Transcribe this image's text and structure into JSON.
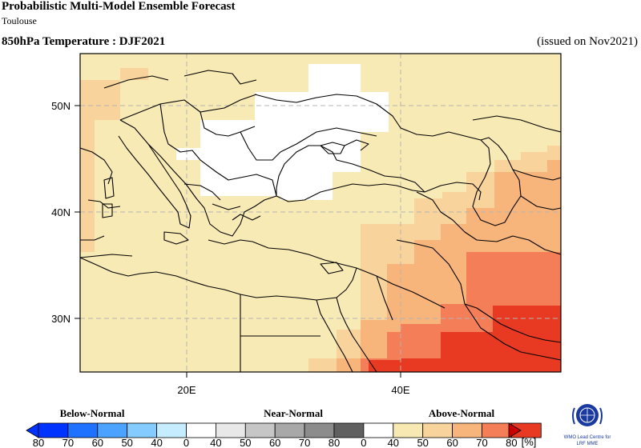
{
  "header": {
    "title": "Probabilistic Multi-Model Ensemble Forecast",
    "subtitle": "Toulouse",
    "variable": "850hPa Temperature : DJF2021",
    "issued": "(issued on Nov2021)"
  },
  "map": {
    "lat_labels": [
      "50N",
      "40N",
      "30N"
    ],
    "lon_labels": [
      "20E",
      "40E"
    ],
    "colors": {
      "land_near": "#f7eab4",
      "white": "#ffffff",
      "above40": "#f8d39b",
      "above50": "#f7b47b",
      "above60": "#f47e57",
      "above70": "#e83a22",
      "coast": "#000000",
      "grid": "#b4b4b4"
    }
  },
  "legend": {
    "groups": {
      "below": "Below-Normal",
      "near": "Near-Normal",
      "above": "Above-Normal"
    },
    "ticks": [
      "80",
      "70",
      "60",
      "50",
      "40",
      "0",
      "40",
      "50",
      "60",
      "70",
      "80",
      "0",
      "40",
      "50",
      "60",
      "70",
      "80"
    ],
    "unit": "[%]",
    "colors": {
      "below": [
        "#0033ff",
        "#1f72ff",
        "#4ba3ff",
        "#84ccff",
        "#c5edff"
      ],
      "white": "#ffffff",
      "near": [
        "#e8e8e8",
        "#c6c6c6",
        "#a8a8a8",
        "#8c8c8c",
        "#606060"
      ],
      "above": [
        "#f8e9b3",
        "#f8d39b",
        "#f7b47b",
        "#f47e57",
        "#e83a22"
      ],
      "arrow_left": "#0033ff",
      "arrow_right": "#cc0000"
    }
  },
  "logo": {
    "line1": "WMO Lead Centre for",
    "line2": "LRF MME"
  }
}
